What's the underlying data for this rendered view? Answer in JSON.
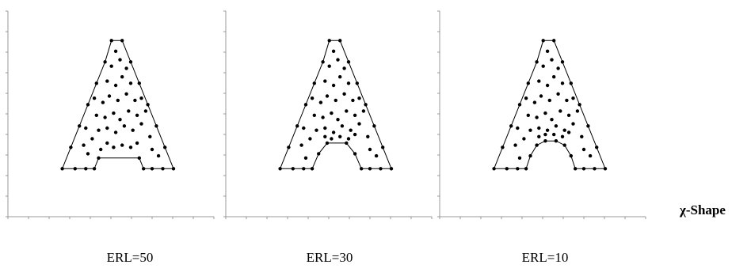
{
  "figure": {
    "shape_label": "χ-Shape"
  },
  "chart_data": [
    {
      "type": "scatter",
      "title": "ERL=50",
      "note": "A-shaped point set with its chi-shape boundary (length parameter ERL=50)",
      "grid": false,
      "xlim": [
        0,
        10
      ],
      "ylim": [
        0,
        10
      ],
      "boundary": [
        [
          1.8,
          2.1
        ],
        [
          2.2,
          3.1
        ],
        [
          2.6,
          4.1
        ],
        [
          3.0,
          5.1
        ],
        [
          3.4,
          6.1
        ],
        [
          3.8,
          7.1
        ],
        [
          4.1,
          8.1
        ],
        [
          4.6,
          8.1
        ],
        [
          5.0,
          7.1
        ],
        [
          5.4,
          6.1
        ],
        [
          5.8,
          5.1
        ],
        [
          6.2,
          4.1
        ],
        [
          6.6,
          3.1
        ],
        [
          7.0,
          2.1
        ],
        [
          6.5,
          2.1
        ],
        [
          6.0,
          2.1
        ],
        [
          5.6,
          2.1
        ],
        [
          5.4,
          2.6
        ],
        [
          3.5,
          2.6
        ],
        [
          3.3,
          2.1
        ],
        [
          2.9,
          2.1
        ],
        [
          2.4,
          2.1
        ]
      ],
      "points": [
        [
          3.6,
          3.0
        ],
        [
          3.9,
          3.3
        ],
        [
          4.2,
          3.1
        ],
        [
          4.6,
          3.2
        ],
        [
          5.0,
          3.1
        ],
        [
          5.3,
          3.3
        ],
        [
          3.2,
          3.5
        ],
        [
          3.5,
          3.9
        ],
        [
          3.9,
          4.0
        ],
        [
          4.3,
          3.8
        ],
        [
          4.7,
          4.1
        ],
        [
          5.1,
          3.9
        ],
        [
          5.5,
          4.2
        ],
        [
          3.4,
          4.6
        ],
        [
          3.8,
          4.5
        ],
        [
          4.2,
          4.7
        ],
        [
          4.5,
          4.4
        ],
        [
          4.9,
          4.8
        ],
        [
          5.3,
          4.6
        ],
        [
          3.7,
          5.2
        ],
        [
          4.0,
          5.5
        ],
        [
          4.4,
          5.3
        ],
        [
          4.8,
          5.6
        ],
        [
          5.2,
          5.3
        ],
        [
          3.9,
          6.2
        ],
        [
          4.3,
          6.0
        ],
        [
          4.6,
          6.4
        ],
        [
          5.0,
          6.1
        ],
        [
          4.1,
          6.9
        ],
        [
          4.5,
          7.2
        ],
        [
          4.8,
          6.8
        ],
        [
          4.3,
          7.6
        ],
        [
          2.8,
          3.2
        ],
        [
          3.0,
          2.8
        ],
        [
          6.0,
          3.0
        ],
        [
          6.3,
          2.7
        ],
        [
          5.9,
          3.6
        ],
        [
          2.9,
          4.0
        ],
        [
          5.7,
          4.8
        ],
        [
          3.3,
          5.4
        ],
        [
          5.5,
          5.4
        ]
      ]
    },
    {
      "type": "scatter",
      "title": "ERL=30",
      "note": "A-shaped point set with its chi-shape boundary (length parameter ERL=30)",
      "grid": false,
      "xlim": [
        0,
        10
      ],
      "ylim": [
        0,
        10
      ],
      "boundary": [
        [
          1.8,
          2.1
        ],
        [
          2.2,
          3.1
        ],
        [
          2.6,
          4.1
        ],
        [
          3.0,
          5.1
        ],
        [
          3.4,
          6.1
        ],
        [
          3.8,
          7.1
        ],
        [
          4.1,
          8.1
        ],
        [
          4.6,
          8.1
        ],
        [
          5.0,
          7.1
        ],
        [
          5.4,
          6.1
        ],
        [
          5.8,
          5.1
        ],
        [
          6.2,
          4.1
        ],
        [
          6.6,
          3.1
        ],
        [
          7.0,
          2.1
        ],
        [
          6.5,
          2.1
        ],
        [
          6.0,
          2.1
        ],
        [
          5.6,
          2.1
        ],
        [
          5.3,
          2.8
        ],
        [
          4.9,
          3.3
        ],
        [
          4.0,
          3.3
        ],
        [
          3.6,
          2.8
        ],
        [
          3.3,
          2.1
        ],
        [
          2.9,
          2.1
        ],
        [
          2.4,
          2.1
        ]
      ],
      "points": [
        [
          3.9,
          3.6
        ],
        [
          4.2,
          3.5
        ],
        [
          4.6,
          3.6
        ],
        [
          5.0,
          3.5
        ],
        [
          5.3,
          3.7
        ],
        [
          3.2,
          3.5
        ],
        [
          3.5,
          3.9
        ],
        [
          3.9,
          4.0
        ],
        [
          4.3,
          3.8
        ],
        [
          4.7,
          4.1
        ],
        [
          5.1,
          3.9
        ],
        [
          5.5,
          4.2
        ],
        [
          3.4,
          4.6
        ],
        [
          3.8,
          4.5
        ],
        [
          4.2,
          4.7
        ],
        [
          4.5,
          4.4
        ],
        [
          4.9,
          4.8
        ],
        [
          5.3,
          4.6
        ],
        [
          3.7,
          5.2
        ],
        [
          4.0,
          5.5
        ],
        [
          4.4,
          5.3
        ],
        [
          4.8,
          5.6
        ],
        [
          5.2,
          5.3
        ],
        [
          3.9,
          6.2
        ],
        [
          4.3,
          6.0
        ],
        [
          4.6,
          6.4
        ],
        [
          5.0,
          6.1
        ],
        [
          4.1,
          6.9
        ],
        [
          4.5,
          7.2
        ],
        [
          4.8,
          6.8
        ],
        [
          4.3,
          7.6
        ],
        [
          2.8,
          3.2
        ],
        [
          3.0,
          2.6
        ],
        [
          6.0,
          3.0
        ],
        [
          6.3,
          2.7
        ],
        [
          5.9,
          3.6
        ],
        [
          2.9,
          4.0
        ],
        [
          5.7,
          4.8
        ],
        [
          3.3,
          5.4
        ],
        [
          5.5,
          5.4
        ]
      ]
    },
    {
      "type": "scatter",
      "title": "ERL=10",
      "note": "A-shaped point set with its chi-shape boundary (length parameter ERL=10)",
      "grid": false,
      "xlim": [
        0,
        10
      ],
      "ylim": [
        0,
        10
      ],
      "boundary": [
        [
          1.8,
          2.1
        ],
        [
          2.2,
          3.1
        ],
        [
          2.6,
          4.1
        ],
        [
          3.0,
          5.1
        ],
        [
          3.4,
          6.1
        ],
        [
          3.8,
          7.1
        ],
        [
          4.1,
          8.1
        ],
        [
          4.6,
          8.1
        ],
        [
          5.0,
          7.1
        ],
        [
          5.4,
          6.1
        ],
        [
          5.8,
          5.1
        ],
        [
          6.2,
          4.1
        ],
        [
          6.6,
          3.1
        ],
        [
          7.0,
          2.1
        ],
        [
          6.5,
          2.1
        ],
        [
          6.0,
          2.1
        ],
        [
          5.6,
          2.1
        ],
        [
          5.4,
          2.7
        ],
        [
          5.1,
          3.2
        ],
        [
          4.7,
          3.4
        ],
        [
          4.2,
          3.4
        ],
        [
          3.8,
          3.2
        ],
        [
          3.5,
          2.7
        ],
        [
          3.3,
          2.1
        ],
        [
          2.9,
          2.1
        ],
        [
          2.4,
          2.1
        ]
      ],
      "points": [
        [
          3.9,
          3.6
        ],
        [
          4.2,
          3.7
        ],
        [
          4.6,
          3.7
        ],
        [
          5.0,
          3.6
        ],
        [
          5.3,
          3.8
        ],
        [
          3.2,
          3.5
        ],
        [
          3.5,
          3.9
        ],
        [
          3.9,
          4.0
        ],
        [
          4.3,
          3.9
        ],
        [
          4.7,
          4.1
        ],
        [
          5.1,
          3.9
        ],
        [
          5.5,
          4.2
        ],
        [
          3.4,
          4.6
        ],
        [
          3.8,
          4.5
        ],
        [
          4.2,
          4.7
        ],
        [
          4.5,
          4.4
        ],
        [
          4.9,
          4.8
        ],
        [
          5.3,
          4.6
        ],
        [
          3.7,
          5.2
        ],
        [
          4.0,
          5.5
        ],
        [
          4.4,
          5.3
        ],
        [
          4.8,
          5.6
        ],
        [
          5.2,
          5.3
        ],
        [
          3.9,
          6.2
        ],
        [
          4.3,
          6.0
        ],
        [
          4.6,
          6.4
        ],
        [
          5.0,
          6.1
        ],
        [
          4.1,
          6.9
        ],
        [
          4.5,
          7.2
        ],
        [
          4.8,
          6.8
        ],
        [
          4.3,
          7.6
        ],
        [
          2.8,
          3.2
        ],
        [
          3.0,
          2.6
        ],
        [
          6.0,
          3.0
        ],
        [
          6.3,
          2.7
        ],
        [
          5.9,
          3.6
        ],
        [
          2.9,
          4.0
        ],
        [
          5.7,
          4.8
        ],
        [
          3.3,
          5.4
        ],
        [
          5.5,
          5.4
        ]
      ]
    }
  ]
}
